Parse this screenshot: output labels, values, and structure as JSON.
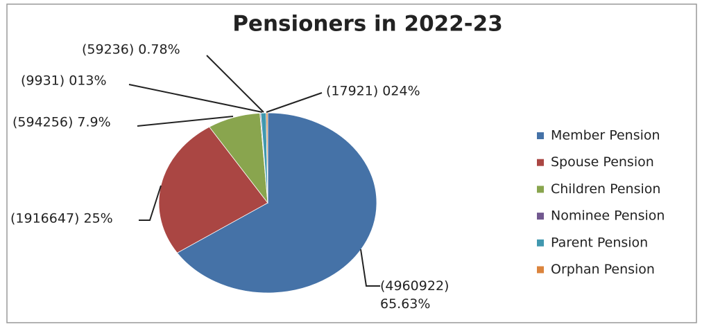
{
  "chart_data": {
    "type": "pie",
    "title": "Pensioners in 2022-23",
    "categories": [
      "Member Pension",
      "Spouse Pension",
      "Children Pension",
      "Nominee Pension",
      "Parent Pension",
      "Orphan Pension"
    ],
    "values": [
      4960922,
      1916647,
      594256,
      9931,
      59236,
      17921
    ],
    "value_labels": [
      "(4960922) 65.63%",
      "(1916647) 25%",
      "(594256) 7.9%",
      "(9931) 013%",
      "(59236) 0.78%",
      "(17921) 024%"
    ],
    "colors": [
      "#4572a7",
      "#aa4643",
      "#89a54e",
      "#71588f",
      "#4198af",
      "#db843d"
    ],
    "legend": "right"
  }
}
